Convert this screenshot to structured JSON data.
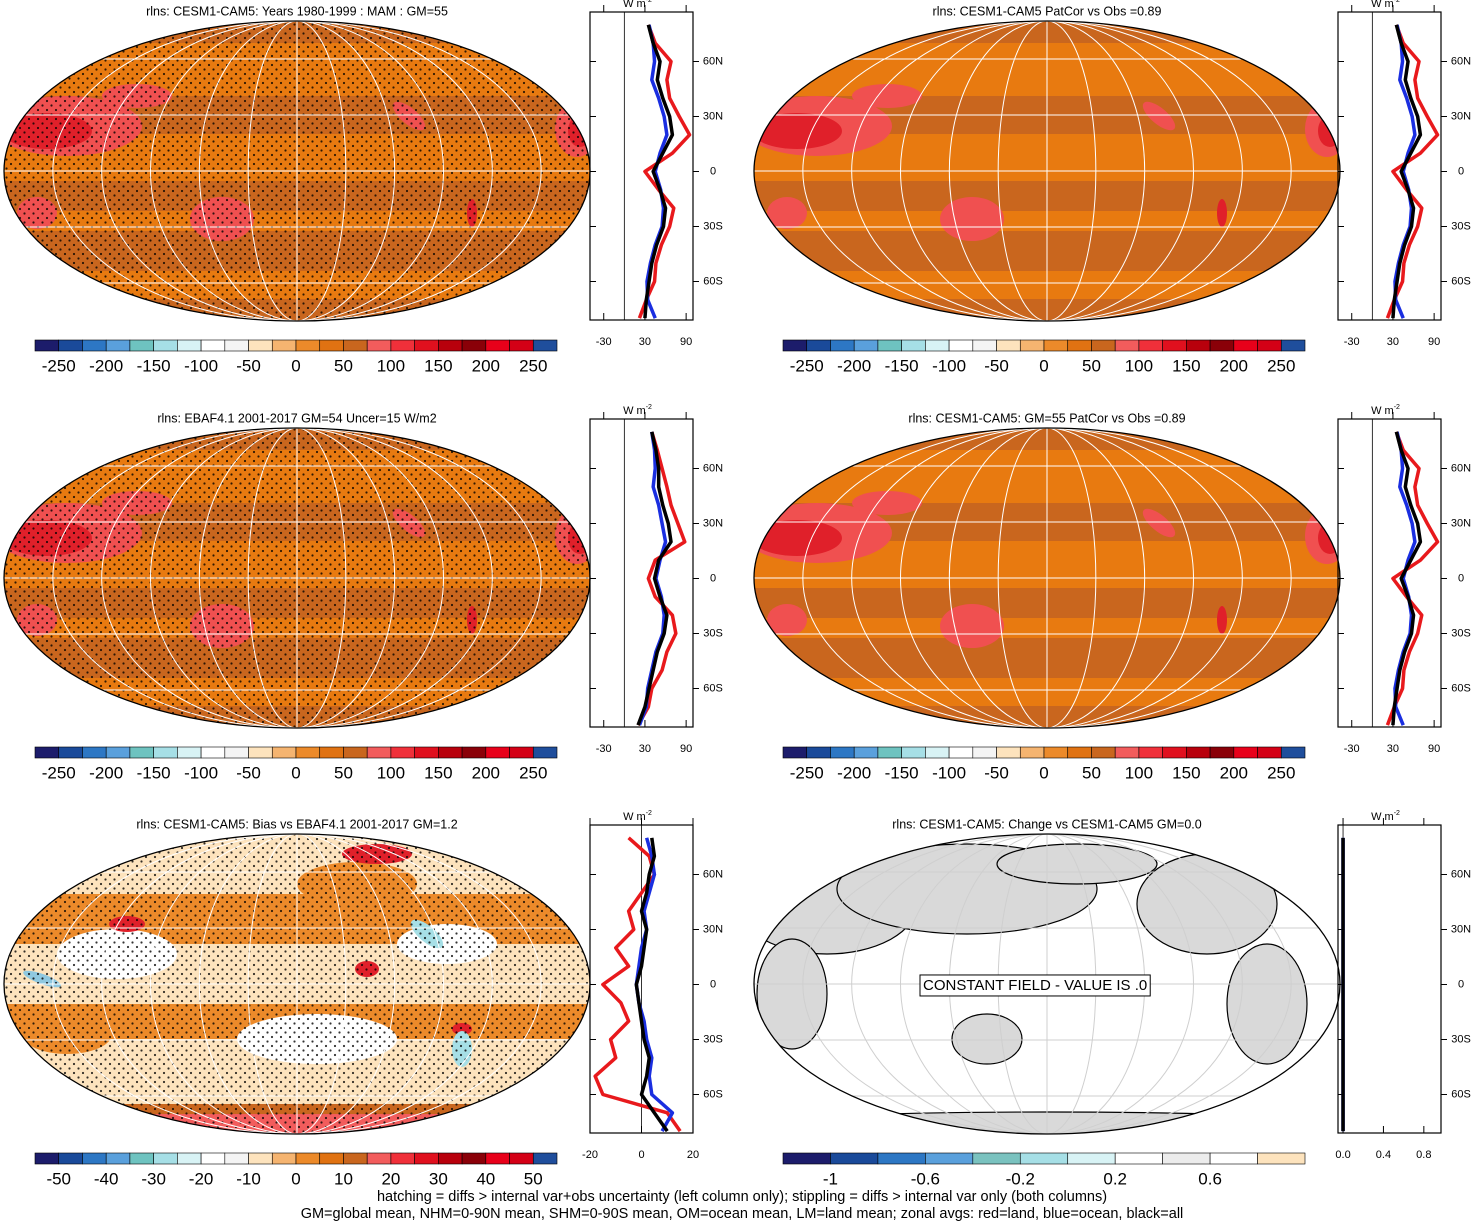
{
  "panels": [
    {
      "title": "rlns: CESM1-CAM5: Years 1980-1999 : MAM : GM=55",
      "colorbar": {
        "colors": [
          "#1c1c6b",
          "#1a4a9a",
          "#2d77c4",
          "#5aa0dc",
          "#6ec3c0",
          "#a6dfe6",
          "#d8f3f5",
          "#ffffff",
          "#f4f4f4",
          "#fde3bd",
          "#f5b470",
          "#ec8a2a",
          "#e07212",
          "#c9661e",
          "#f25c5c",
          "#f0303a",
          "#e0101e",
          "#b8000c",
          "#8a0008",
          "#e8001a",
          "#d40016",
          "#1f4e9c"
        ],
        "labels": [
          -250,
          -200,
          -150,
          -100,
          -50,
          0,
          50,
          100,
          150,
          200,
          250
        ]
      },
      "zonal": {
        "unit": "W m",
        "unit_sup": "-2",
        "xlim": [
          -50,
          100
        ],
        "xticks": [
          -30,
          30,
          90
        ],
        "ylim": [
          -81,
          87
        ],
        "yticks": [
          {
            "value": 60,
            "label": "60N"
          },
          {
            "value": 30,
            "label": "30N"
          },
          0,
          {
            "value": -30,
            "label": "30S"
          },
          {
            "value": -60,
            "label": "60S"
          }
        ],
        "lat": [
          -80,
          -70,
          -60,
          -50,
          -40,
          -30,
          -20,
          -10,
          0,
          10,
          20,
          30,
          40,
          50,
          60,
          70,
          80
        ],
        "series": [
          {
            "color": "#e8191c",
            "values": [
              22,
              32,
              44,
              46,
              54,
              66,
              72,
              50,
              30,
              70,
              95,
              80,
              66,
              62,
              68,
              45,
              35
            ]
          },
          {
            "color": "#1a2ee0",
            "values": [
              45,
              34,
              33,
              38,
              45,
              55,
              57,
              53,
              45,
              52,
              62,
              58,
              50,
              40,
              44,
              42,
              36
            ]
          },
          {
            "color": "#000000",
            "values": [
              30,
              32,
              36,
              40,
              47,
              57,
              60,
              52,
              42,
              56,
              70,
              66,
              56,
              48,
              52,
              42,
              35
            ]
          }
        ]
      }
    },
    {
      "title": "rlns: CESM1-CAM5 PatCor vs Obs =0.89",
      "colorbar": {
        "colors": [
          "#1c1c6b",
          "#1a4a9a",
          "#2d77c4",
          "#5aa0dc",
          "#6ec3c0",
          "#a6dfe6",
          "#d8f3f5",
          "#ffffff",
          "#f4f4f4",
          "#fde3bd",
          "#f5b470",
          "#ec8a2a",
          "#e07212",
          "#c9661e",
          "#f25c5c",
          "#f0303a",
          "#e0101e",
          "#b8000c",
          "#8a0008",
          "#e8001a",
          "#d40016",
          "#1f4e9c"
        ],
        "labels": [
          -250,
          -200,
          -150,
          -100,
          -50,
          0,
          50,
          100,
          150,
          200,
          250
        ]
      },
      "zonal": {
        "unit": "W m",
        "unit_sup": "-2",
        "xlim": [
          -50,
          100
        ],
        "xticks": [
          -30,
          30,
          90
        ],
        "ylim": [
          -81,
          87
        ],
        "yticks": [
          {
            "value": 60,
            "label": "60N"
          },
          {
            "value": 30,
            "label": "30N"
          },
          0,
          {
            "value": -30,
            "label": "30S"
          },
          {
            "value": -60,
            "label": "60S"
          }
        ],
        "lat": [
          -80,
          -70,
          -60,
          -50,
          -40,
          -30,
          -20,
          -10,
          0,
          10,
          20,
          30,
          40,
          50,
          60,
          70,
          80
        ],
        "series": [
          {
            "color": "#e8191c",
            "values": [
              22,
              32,
              44,
              46,
              54,
              66,
              72,
              50,
              30,
              70,
              95,
              80,
              66,
              62,
              68,
              45,
              35
            ]
          },
          {
            "color": "#1a2ee0",
            "values": [
              45,
              34,
              33,
              38,
              45,
              55,
              57,
              53,
              45,
              52,
              62,
              58,
              50,
              40,
              44,
              42,
              36
            ]
          },
          {
            "color": "#000000",
            "values": [
              30,
              32,
              36,
              40,
              47,
              57,
              60,
              52,
              42,
              56,
              70,
              66,
              56,
              48,
              52,
              42,
              35
            ]
          }
        ]
      }
    },
    {
      "title": "rlns: EBAF4.1 2001-2017 GM=54 Uncer=15 W/m2",
      "colorbar": {
        "colors": [
          "#1c1c6b",
          "#1a4a9a",
          "#2d77c4",
          "#5aa0dc",
          "#6ec3c0",
          "#a6dfe6",
          "#d8f3f5",
          "#ffffff",
          "#f4f4f4",
          "#fde3bd",
          "#f5b470",
          "#ec8a2a",
          "#e07212",
          "#c9661e",
          "#f25c5c",
          "#f0303a",
          "#e0101e",
          "#b8000c",
          "#8a0008",
          "#e8001a",
          "#d40016",
          "#1f4e9c"
        ],
        "labels": [
          -250,
          -200,
          -150,
          -100,
          -50,
          0,
          50,
          100,
          150,
          200,
          250
        ]
      },
      "zonal": {
        "unit": "W m",
        "unit_sup": "-2",
        "xlim": [
          -50,
          100
        ],
        "xticks": [
          -30,
          30,
          90
        ],
        "ylim": [
          -81,
          87
        ],
        "yticks": [
          {
            "value": 60,
            "label": "60N"
          },
          {
            "value": 30,
            "label": "30N"
          },
          0,
          {
            "value": -30,
            "label": "30S"
          },
          {
            "value": -60,
            "label": "60S"
          }
        ],
        "lat": [
          -80,
          -70,
          -60,
          -50,
          -40,
          -30,
          -20,
          -10,
          0,
          10,
          20,
          30,
          40,
          50,
          60,
          70,
          80
        ],
        "series": [
          {
            "color": "#e8191c",
            "values": [
              20,
              35,
              40,
              55,
              62,
              75,
              70,
              45,
              35,
              45,
              88,
              78,
              68,
              62,
              55,
              48,
              40
            ]
          },
          {
            "color": "#1a2ee0",
            "values": [
              22,
              32,
              34,
              40,
              46,
              56,
              58,
              54,
              46,
              52,
              60,
              55,
              50,
              42,
              45,
              44,
              40
            ]
          },
          {
            "color": "#000000",
            "values": [
              20,
              30,
              36,
              42,
              48,
              58,
              62,
              52,
              44,
              50,
              68,
              64,
              56,
              50,
              50,
              46,
              40
            ]
          }
        ]
      }
    },
    {
      "title": "rlns: CESM1-CAM5: GM=55 PatCor vs Obs =0.89",
      "colorbar": {
        "colors": [
          "#1c1c6b",
          "#1a4a9a",
          "#2d77c4",
          "#5aa0dc",
          "#6ec3c0",
          "#a6dfe6",
          "#d8f3f5",
          "#ffffff",
          "#f4f4f4",
          "#fde3bd",
          "#f5b470",
          "#ec8a2a",
          "#e07212",
          "#c9661e",
          "#f25c5c",
          "#f0303a",
          "#e0101e",
          "#b8000c",
          "#8a0008",
          "#e8001a",
          "#d40016",
          "#1f4e9c"
        ],
        "labels": [
          -250,
          -200,
          -150,
          -100,
          -50,
          0,
          50,
          100,
          150,
          200,
          250
        ]
      },
      "zonal": {
        "unit": "W m",
        "unit_sup": "-2",
        "xlim": [
          -50,
          100
        ],
        "xticks": [
          -30,
          30,
          90
        ],
        "ylim": [
          -81,
          87
        ],
        "yticks": [
          {
            "value": 60,
            "label": "60N"
          },
          {
            "value": 30,
            "label": "30N"
          },
          0,
          {
            "value": -30,
            "label": "30S"
          },
          {
            "value": -60,
            "label": "60S"
          }
        ],
        "lat": [
          -80,
          -70,
          -60,
          -50,
          -40,
          -30,
          -20,
          -10,
          0,
          10,
          20,
          30,
          40,
          50,
          60,
          70,
          80
        ],
        "series": [
          {
            "color": "#e8191c",
            "values": [
              22,
              32,
              44,
              46,
              54,
              66,
              72,
              50,
              30,
              70,
              95,
              80,
              66,
              62,
              68,
              45,
              35
            ]
          },
          {
            "color": "#1a2ee0",
            "values": [
              45,
              34,
              33,
              38,
              45,
              55,
              57,
              53,
              45,
              52,
              62,
              58,
              50,
              40,
              44,
              42,
              36
            ]
          },
          {
            "color": "#000000",
            "values": [
              30,
              32,
              36,
              40,
              47,
              57,
              60,
              52,
              42,
              56,
              70,
              66,
              56,
              48,
              52,
              42,
              35
            ]
          }
        ]
      }
    },
    {
      "title": "rlns: CESM1-CAM5: Bias vs EBAF4.1 2001-2017 GM=1.2",
      "colorbar": {
        "colors": [
          "#1c1c6b",
          "#1a4a9a",
          "#2d77c4",
          "#5aa0dc",
          "#6ec3c0",
          "#a6dfe6",
          "#d8f3f5",
          "#ffffff",
          "#f4f4f4",
          "#fde3bd",
          "#f5b470",
          "#ec8a2a",
          "#e07212",
          "#c9661e",
          "#f25c5c",
          "#f0303a",
          "#e0101e",
          "#b8000c",
          "#8a0008",
          "#e8001a",
          "#d40016",
          "#1f4e9c"
        ],
        "labels": [
          -50,
          -40,
          -30,
          -20,
          -10,
          0,
          10,
          20,
          30,
          40,
          50
        ]
      },
      "zonal": {
        "unit": "W m",
        "unit_sup": "-2",
        "xlim": [
          -20,
          20
        ],
        "xticks": [
          -20,
          0,
          20
        ],
        "ylim": [
          -81,
          87
        ],
        "yticks": [
          {
            "value": 60,
            "label": "60N"
          },
          {
            "value": 30,
            "label": "30N"
          },
          0,
          {
            "value": -30,
            "label": "30S"
          },
          {
            "value": -60,
            "label": "60S"
          }
        ],
        "lat": [
          -80,
          -70,
          -60,
          -50,
          -40,
          -30,
          -20,
          -10,
          0,
          10,
          20,
          30,
          40,
          50,
          60,
          70,
          80
        ],
        "series": [
          {
            "color": "#e8191c",
            "values": [
              15,
              10,
              -15,
              -18,
              -10,
              -12,
              -5,
              -8,
              -15,
              -5,
              -10,
              -3,
              -5,
              0,
              5,
              3,
              -5
            ]
          },
          {
            "color": "#1a2ee0",
            "values": [
              8,
              12,
              4,
              3,
              4,
              2,
              1,
              -1,
              -2,
              -1,
              0,
              2,
              1,
              3,
              5,
              4,
              2
            ]
          },
          {
            "color": "#000000",
            "values": [
              10,
              5,
              0,
              2,
              3,
              1,
              0,
              -1,
              -2,
              0,
              1,
              2,
              0,
              2,
              3,
              5,
              4
            ]
          }
        ]
      }
    },
    {
      "title": "rlns: CESM1-CAM5: Change vs CESM1-CAM5 GM=0.0",
      "note": "CONSTANT FIELD - VALUE IS .0",
      "colorbar": {
        "colors": [
          "#1c1c6b",
          "#1a4a9a",
          "#2d77c4",
          "#5aa0dc",
          "#7ac2bf",
          "#a6dfe6",
          "#d8f3f5",
          "#ffffff",
          "#ececec",
          "#ffffff",
          "#fde3bd"
        ],
        "labels": [
          -1,
          -0.6,
          -0.2,
          0.2,
          0.6
        ]
      },
      "zonal": {
        "unit": "W m",
        "unit_sup": "-2",
        "xlim": [
          -0.05,
          0.97
        ],
        "xticks": [
          {
            "value": 0,
            "label": "0.0"
          },
          0.4,
          0.8
        ],
        "ylim": [
          -81,
          87
        ],
        "yticks": [
          {
            "value": 60,
            "label": "60N"
          },
          {
            "value": 30,
            "label": "30N"
          },
          0,
          {
            "value": -30,
            "label": "30S"
          },
          {
            "value": -60,
            "label": "60S"
          }
        ],
        "lat": [
          -80,
          -70,
          -60,
          -50,
          -40,
          -30,
          -20,
          -10,
          0,
          10,
          20,
          30,
          40,
          50,
          60,
          70,
          80
        ],
        "series": [
          {
            "color": "#1a2ee0",
            "values": [
              0,
              0,
              0,
              0,
              0,
              0,
              0,
              0,
              0,
              0,
              0,
              0,
              0,
              0,
              0,
              0,
              0
            ]
          },
          {
            "color": "#000000",
            "values": [
              0,
              0,
              0,
              0,
              0,
              0,
              0,
              0,
              0,
              0,
              0,
              0,
              0,
              0,
              0,
              0,
              0
            ]
          }
        ]
      }
    }
  ],
  "footer": [
    "hatching = diffs > internal var+obs uncertainty (left column only); stippling = diffs > internal var only (both columns)",
    "GM=global mean, NHM=0-90N mean, SHM=0-90S mean, OM=ocean mean, LM=land mean; zonal avgs: red=land, blue=ocean, black=all"
  ]
}
